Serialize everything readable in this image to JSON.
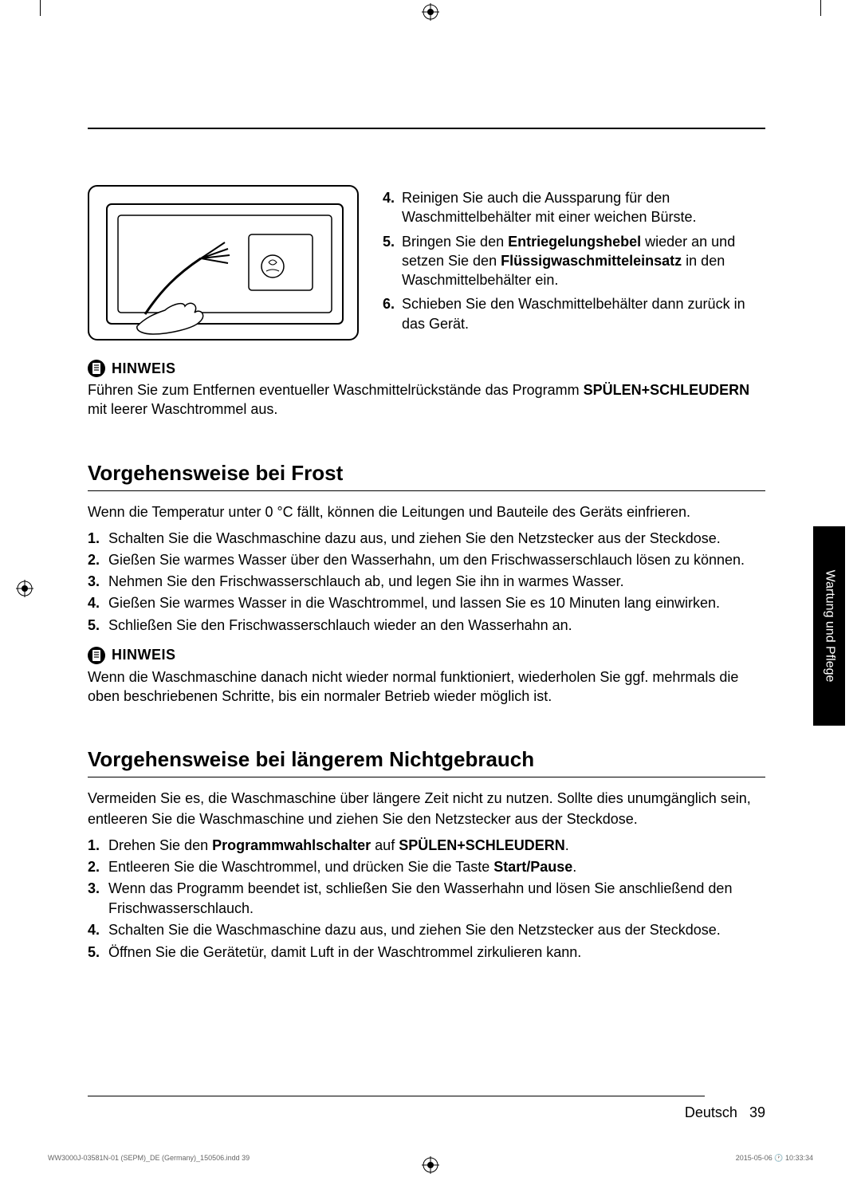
{
  "steps_top": [
    {
      "num": "4.",
      "html": "Reinigen Sie auch die Aussparung für den Waschmittelbehälter mit einer weichen Bürste."
    },
    {
      "num": "5.",
      "html": "Bringen Sie den <b>Entriegelungshebel</b> wieder an und setzen Sie den <b>Flüssigwaschmitteleinsatz</b> in den Waschmittelbehälter ein."
    },
    {
      "num": "6.",
      "html": "Schieben Sie den Waschmittelbehälter dann zurück in das Gerät."
    }
  ],
  "note1": {
    "label": "HINWEIS",
    "html": "Führen Sie zum Entfernen eventueller Waschmittelrückstände das Programm <b>SPÜLEN+SCHLEUDERN</b> mit leerer Waschtrommel aus."
  },
  "section1": {
    "title": "Vorgehensweise bei Frost",
    "intro": "Wenn die Temperatur unter 0 °C fällt, können die Leitungen und Bauteile des Geräts einfrieren.",
    "steps": [
      {
        "num": "1.",
        "html": "Schalten Sie die Waschmaschine dazu aus, und ziehen Sie den Netzstecker aus der Steckdose."
      },
      {
        "num": "2.",
        "html": "Gießen Sie warmes Wasser über den Wasserhahn, um den Frischwasserschlauch lösen zu können."
      },
      {
        "num": "3.",
        "html": "Nehmen Sie den Frischwasserschlauch ab, und legen Sie ihn in warmes Wasser."
      },
      {
        "num": "4.",
        "html": "Gießen Sie warmes Wasser in die Waschtrommel, und lassen Sie es 10 Minuten lang einwirken."
      },
      {
        "num": "5.",
        "html": "Schließen Sie den Frischwasserschlauch wieder an den Wasserhahn an."
      }
    ]
  },
  "note2": {
    "label": "HINWEIS",
    "text": "Wenn die Waschmaschine danach nicht wieder normal funktioniert, wiederholen Sie ggf. mehrmals die oben beschriebenen Schritte, bis ein normaler Betrieb wieder möglich ist."
  },
  "section2": {
    "title": "Vorgehensweise bei längerem Nichtgebrauch",
    "intro": "Vermeiden Sie es, die Waschmaschine über längere Zeit nicht zu nutzen. Sollte dies unumgänglich sein, entleeren Sie die Waschmaschine und ziehen Sie den Netzstecker aus der Steckdose.",
    "steps": [
      {
        "num": "1.",
        "html": "Drehen Sie den <b>Programmwahlschalter</b> auf <b>SPÜLEN+SCHLEUDERN</b>."
      },
      {
        "num": "2.",
        "html": "Entleeren Sie die Waschtrommel, und drücken Sie die Taste <b>Start/Pause</b>."
      },
      {
        "num": "3.",
        "html": "Wenn das Programm beendet ist, schließen Sie den Wasserhahn und lösen Sie anschließend den Frischwasserschlauch."
      },
      {
        "num": "4.",
        "html": "Schalten Sie die Waschmaschine dazu aus, und ziehen Sie den Netzstecker aus der Steckdose."
      },
      {
        "num": "5.",
        "html": "Öffnen Sie die Gerätetür, damit Luft in der Waschtrommel zirkulieren kann."
      }
    ]
  },
  "side_tab": "Wartung und Pflege",
  "footer": {
    "lang": "Deutsch",
    "page": "39"
  },
  "print": {
    "left": "WW3000J-03581N-01 (SEPM)_DE (Germany)_150506.indd   39",
    "right": "2015-05-06   🕐 10:33:34"
  }
}
